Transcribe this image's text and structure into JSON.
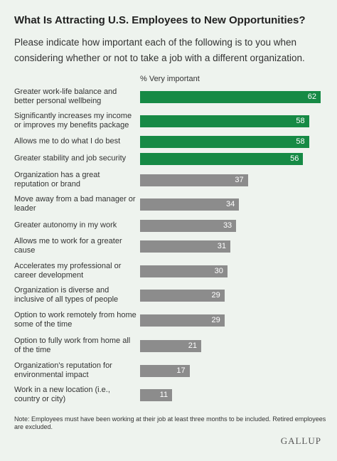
{
  "chart_data": {
    "type": "bar",
    "orientation": "horizontal",
    "title": "What Is Attracting U.S. Employees to New Opportunities?",
    "subtitle": "Please indicate how important each of the following is to you when considering whether or not to take a job with a different organization.",
    "value_axis_label": "% Very important",
    "categories": [
      "Greater work-life balance and better personal wellbeing",
      "Significantly increases my income or improves my benefits package",
      "Allows me to do what I do best",
      "Greater stability and job security",
      "Organization has a great reputation or brand",
      "Move away from a bad manager or leader",
      "Greater autonomy in my work",
      "Allows me to work for a greater cause",
      "Accelerates my professional or career development",
      "Organization is diverse and inclusive of all types of people",
      "Option to work remotely from home some of the time",
      "Option to fully work from home all of the time",
      "Organization's reputation for environmental impact",
      "Work in a new location (i.e., country or city)"
    ],
    "values": [
      62,
      58,
      58,
      56,
      37,
      34,
      33,
      31,
      30,
      29,
      29,
      21,
      17,
      11
    ],
    "colors": [
      "#168a45",
      "#168a45",
      "#168a45",
      "#168a45",
      "#8c8c8c",
      "#8c8c8c",
      "#8c8c8c",
      "#8c8c8c",
      "#8c8c8c",
      "#8c8c8c",
      "#8c8c8c",
      "#8c8c8c",
      "#8c8c8c",
      "#8c8c8c"
    ],
    "note": "Note: Employees must have been working at their job at least three months to be included. Retired employees are excluded.",
    "source": "GALLUP"
  }
}
